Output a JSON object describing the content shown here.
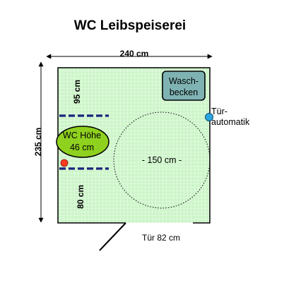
{
  "title": "WC Leibspeiserei",
  "dimensions": {
    "width": "240 cm",
    "height": "235 cm",
    "upper_wall": "95 cm",
    "lower_wall": "80 cm",
    "turning_circle": "- 150 cm -",
    "door": "Tür 82 cm"
  },
  "fixtures": {
    "sink_line1": "Wasch-",
    "sink_line2": "becken",
    "wc_line1": "WC Höhe",
    "wc_line2": "46 cm",
    "door_automatic_line1": "Tür-",
    "door_automatic_line2": "automatik"
  },
  "colors": {
    "floor": "#ccf5c8",
    "grid": "#ffffff",
    "wall": "#000000",
    "rail": "#1a237e",
    "sink": "#7fb3b3",
    "wc": "#8fd11f",
    "wc_marker": "#ff3b1f",
    "door_button": "#2aa7e0"
  }
}
